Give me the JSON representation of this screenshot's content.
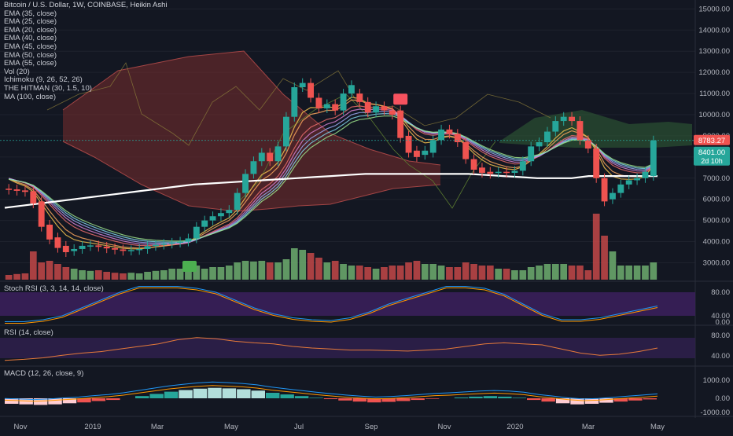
{
  "header": {
    "title": "Bitcoin / U.S. Dollar, 1W, COINBASE, Heikin Ashi"
  },
  "indicators": [
    "EMA (35, close)",
    "EMA (25, close)",
    "EMA (20, close)",
    "EMA (40, close)",
    "EMA (45, close)",
    "EMA (50, close)",
    "EMA (55, close)",
    "Vol (20)",
    "Ichimoku (9, 26, 52, 26)",
    "THE HITMAN (30, 1.5, 10)",
    "MA (100, close)"
  ],
  "panes": {
    "stoch_label": "Stoch RSI (3, 3, 14, 14, close)",
    "rsi_label": "RSI (14, close)",
    "macd_label": "MACD (12, 26, close, 9)"
  },
  "price_axis": {
    "ticks": [
      "15000.00",
      "14000.00",
      "13000.00",
      "12000.00",
      "11000.00",
      "10000.00",
      "9000.00",
      "8000.00",
      "7000.00",
      "6000.00",
      "5000.00",
      "4000.00",
      "3000.00"
    ],
    "tick_values": [
      15000,
      14000,
      13000,
      12000,
      11000,
      10000,
      9000,
      8000,
      7000,
      6000,
      5000,
      4000,
      3000
    ],
    "badge_red": "8783.27",
    "badge_green": "8401.00",
    "badge_countdown": "2d 10h"
  },
  "stoch_axis": {
    "ticks": [
      "80.00",
      "40.00",
      "0.00"
    ]
  },
  "rsi_axis": {
    "ticks": [
      "80.00",
      "40.00"
    ]
  },
  "macd_axis": {
    "ticks": [
      "1000.00",
      "0.00",
      "-1000.00"
    ]
  },
  "time_axis": {
    "labels": [
      "Nov",
      "2019",
      "Mar",
      "May",
      "Jul",
      "Sep",
      "Nov",
      "2020",
      "Mar",
      "May"
    ]
  },
  "colors": {
    "background": "#131722",
    "up": "#26a69a",
    "down": "#ef5350",
    "vol_up": "#6fae6f",
    "vol_down": "#c44848",
    "ma100": "#ffffff",
    "cloud_red": "#7a2d2d",
    "cloud_green": "#2f5a35",
    "stoch_band": "#3a1f5a",
    "rsi_band": "#2e1f4a"
  },
  "chart_data": {
    "type": "candlestick",
    "title": "Bitcoin / U.S. Dollar, 1W, COINBASE, Heikin Ashi",
    "ylim": [
      2200,
      15200
    ],
    "candles": [
      {
        "t": "2018-10-22",
        "o": 6500,
        "c": 6450
      },
      {
        "t": "2018-10-29",
        "o": 6470,
        "c": 6400
      },
      {
        "t": "2018-11-05",
        "o": 6420,
        "c": 6350
      },
      {
        "t": "2018-11-12",
        "o": 6380,
        "c": 5800
      },
      {
        "t": "2018-11-19",
        "o": 5900,
        "c": 4700
      },
      {
        "t": "2018-11-26",
        "o": 4800,
        "c": 4100
      },
      {
        "t": "2018-12-03",
        "o": 4200,
        "c": 3700
      },
      {
        "t": "2018-12-10",
        "o": 3800,
        "c": 3500
      },
      {
        "t": "2018-12-17",
        "o": 3550,
        "c": 3650
      },
      {
        "t": "2018-12-24",
        "o": 3650,
        "c": 3800
      },
      {
        "t": "2018-12-31",
        "o": 3780,
        "c": 3820
      },
      {
        "t": "2019-01-07",
        "o": 3820,
        "c": 3750
      },
      {
        "t": "2019-01-14",
        "o": 3760,
        "c": 3680
      },
      {
        "t": "2019-01-21",
        "o": 3690,
        "c": 3620
      },
      {
        "t": "2019-01-28",
        "o": 3630,
        "c": 3560
      },
      {
        "t": "2019-02-04",
        "o": 3570,
        "c": 3600
      },
      {
        "t": "2019-02-11",
        "o": 3600,
        "c": 3650
      },
      {
        "t": "2019-02-18",
        "o": 3650,
        "c": 3780
      },
      {
        "t": "2019-02-25",
        "o": 3790,
        "c": 3850
      },
      {
        "t": "2019-03-04",
        "o": 3850,
        "c": 3900
      },
      {
        "t": "2019-03-11",
        "o": 3900,
        "c": 3950
      },
      {
        "t": "2019-03-18",
        "o": 3950,
        "c": 4000
      },
      {
        "t": "2019-03-25",
        "o": 4000,
        "c": 4150
      },
      {
        "t": "2019-04-01",
        "o": 4150,
        "c": 4700
      },
      {
        "t": "2019-04-08",
        "o": 4700,
        "c": 5000
      },
      {
        "t": "2019-04-15",
        "o": 5000,
        "c": 5200
      },
      {
        "t": "2019-04-22",
        "o": 5200,
        "c": 5350
      },
      {
        "t": "2019-04-29",
        "o": 5350,
        "c": 5500
      },
      {
        "t": "2019-05-06",
        "o": 5500,
        "c": 6300
      },
      {
        "t": "2019-05-13",
        "o": 6300,
        "c": 7200
      },
      {
        "t": "2019-05-20",
        "o": 7200,
        "c": 7800
      },
      {
        "t": "2019-05-27",
        "o": 7800,
        "c": 8200
      },
      {
        "t": "2019-06-03",
        "o": 8200,
        "c": 7800
      },
      {
        "t": "2019-06-10",
        "o": 7800,
        "c": 8500
      },
      {
        "t": "2019-06-17",
        "o": 8500,
        "c": 9900
      },
      {
        "t": "2019-06-24",
        "o": 9900,
        "c": 11300
      },
      {
        "t": "2019-07-01",
        "o": 11300,
        "c": 11500
      },
      {
        "t": "2019-07-08",
        "o": 11500,
        "c": 10800
      },
      {
        "t": "2019-07-15",
        "o": 10800,
        "c": 10300
      },
      {
        "t": "2019-07-22",
        "o": 10300,
        "c": 10500
      },
      {
        "t": "2019-07-29",
        "o": 10500,
        "c": 10200
      },
      {
        "t": "2019-08-05",
        "o": 10200,
        "c": 11000
      },
      {
        "t": "2019-08-12",
        "o": 11000,
        "c": 11400
      },
      {
        "t": "2019-08-19",
        "o": 11000,
        "c": 10600
      },
      {
        "t": "2019-08-26",
        "o": 10600,
        "c": 10100
      },
      {
        "t": "2019-09-02",
        "o": 10100,
        "c": 10400
      },
      {
        "t": "2019-09-09",
        "o": 10400,
        "c": 10200
      },
      {
        "t": "2019-09-16",
        "o": 10200,
        "c": 10000
      },
      {
        "t": "2019-09-23",
        "o": 10200,
        "c": 8900
      },
      {
        "t": "2019-09-30",
        "o": 9000,
        "c": 8200
      },
      {
        "t": "2019-10-07",
        "o": 8300,
        "c": 8000
      },
      {
        "t": "2019-10-14",
        "o": 8100,
        "c": 8300
      },
      {
        "t": "2019-10-21",
        "o": 8200,
        "c": 8800
      },
      {
        "t": "2019-10-28",
        "o": 8800,
        "c": 9300
      },
      {
        "t": "2019-11-04",
        "o": 9300,
        "c": 9100
      },
      {
        "t": "2019-11-11",
        "o": 9100,
        "c": 8700
      },
      {
        "t": "2019-11-18",
        "o": 8700,
        "c": 7900
      },
      {
        "t": "2019-11-25",
        "o": 7900,
        "c": 7400
      },
      {
        "t": "2019-12-02",
        "o": 7500,
        "c": 7250
      },
      {
        "t": "2019-12-09",
        "o": 7300,
        "c": 7200
      },
      {
        "t": "2019-12-16",
        "o": 7250,
        "c": 7300
      },
      {
        "t": "2019-12-23",
        "o": 7300,
        "c": 7250
      },
      {
        "t": "2019-12-30",
        "o": 7250,
        "c": 7350
      },
      {
        "t": "2020-01-06",
        "o": 7350,
        "c": 7800
      },
      {
        "t": "2020-01-13",
        "o": 7800,
        "c": 8500
      },
      {
        "t": "2020-01-20",
        "o": 8500,
        "c": 8700
      },
      {
        "t": "2020-01-27",
        "o": 8700,
        "c": 9200
      },
      {
        "t": "2020-02-03",
        "o": 9200,
        "c": 9700
      },
      {
        "t": "2020-02-10",
        "o": 9700,
        "c": 9900
      },
      {
        "t": "2020-02-17",
        "o": 9900,
        "c": 9700
      },
      {
        "t": "2020-02-24",
        "o": 9700,
        "c": 8800
      },
      {
        "t": "2020-03-02",
        "o": 8800,
        "c": 8400
      },
      {
        "t": "2020-03-09",
        "o": 8400,
        "c": 7000
      },
      {
        "t": "2020-03-16",
        "o": 7000,
        "c": 5900
      },
      {
        "t": "2020-03-23",
        "o": 6000,
        "c": 6300
      },
      {
        "t": "2020-03-30",
        "o": 6300,
        "c": 6700
      },
      {
        "t": "2020-04-06",
        "o": 6700,
        "c": 6900
      },
      {
        "t": "2020-04-13",
        "o": 6900,
        "c": 7000
      },
      {
        "t": "2020-04-20",
        "o": 7000,
        "c": 7300
      },
      {
        "t": "2020-04-27",
        "o": 7100,
        "c": 8783.27
      }
    ],
    "volume": [
      0.15,
      0.18,
      0.2,
      0.9,
      0.55,
      0.6,
      0.5,
      0.4,
      0.35,
      0.3,
      0.28,
      0.3,
      0.25,
      0.22,
      0.2,
      0.22,
      0.2,
      0.25,
      0.28,
      0.3,
      0.35,
      0.35,
      0.3,
      0.45,
      0.35,
      0.4,
      0.4,
      0.45,
      0.55,
      0.6,
      0.58,
      0.6,
      0.55,
      0.55,
      0.65,
      1.0,
      0.95,
      0.85,
      0.7,
      0.55,
      0.6,
      0.5,
      0.45,
      0.45,
      0.4,
      0.35,
      0.4,
      0.45,
      0.45,
      0.55,
      0.6,
      0.5,
      0.5,
      0.45,
      0.4,
      0.4,
      0.55,
      0.5,
      0.45,
      0.45,
      0.35,
      0.35,
      0.3,
      0.3,
      0.4,
      0.45,
      0.5,
      0.5,
      0.5,
      0.45,
      0.45,
      0.3,
      2.1,
      1.4,
      0.9,
      0.45,
      0.45,
      0.45,
      0.45,
      0.55
    ],
    "ma100": [
      5600,
      5700,
      5800,
      5900,
      6000,
      6100,
      6200,
      6300,
      6400,
      6500,
      6600,
      6700,
      6750,
      6800,
      6850,
      6900,
      6950,
      7000,
      7050,
      7100,
      7150,
      7200,
      7200,
      7200,
      7200,
      7200,
      7200,
      7200,
      7150,
      7100,
      7050,
      7000,
      7000,
      7000,
      7100,
      7100,
      7100,
      7100,
      7100
    ],
    "stoch_k": [
      5,
      5,
      10,
      20,
      40,
      60,
      80,
      95,
      95,
      95,
      90,
      80,
      60,
      40,
      25,
      15,
      10,
      8,
      15,
      30,
      50,
      65,
      80,
      95,
      95,
      90,
      75,
      50,
      25,
      10,
      10,
      15,
      25,
      35,
      45
    ],
    "rsi": [
      28,
      30,
      33,
      38,
      42,
      45,
      50,
      55,
      60,
      68,
      72,
      70,
      65,
      62,
      60,
      55,
      52,
      50,
      48,
      48,
      47,
      46,
      48,
      50,
      55,
      60,
      62,
      60,
      58,
      50,
      42,
      38,
      40,
      45,
      52
    ],
    "macd_hist": [
      -200,
      -220,
      -240,
      -220,
      -180,
      -150,
      -100,
      -60,
      0,
      80,
      160,
      240,
      300,
      350,
      380,
      360,
      330,
      280,
      200,
      140,
      80,
      20,
      -30,
      -80,
      -120,
      -150,
      -130,
      -100,
      -60,
      -20,
      0,
      30,
      60,
      80,
      60,
      20,
      -60,
      -120,
      -180,
      -220,
      -200,
      -160,
      -120,
      -80,
      -40
    ]
  }
}
